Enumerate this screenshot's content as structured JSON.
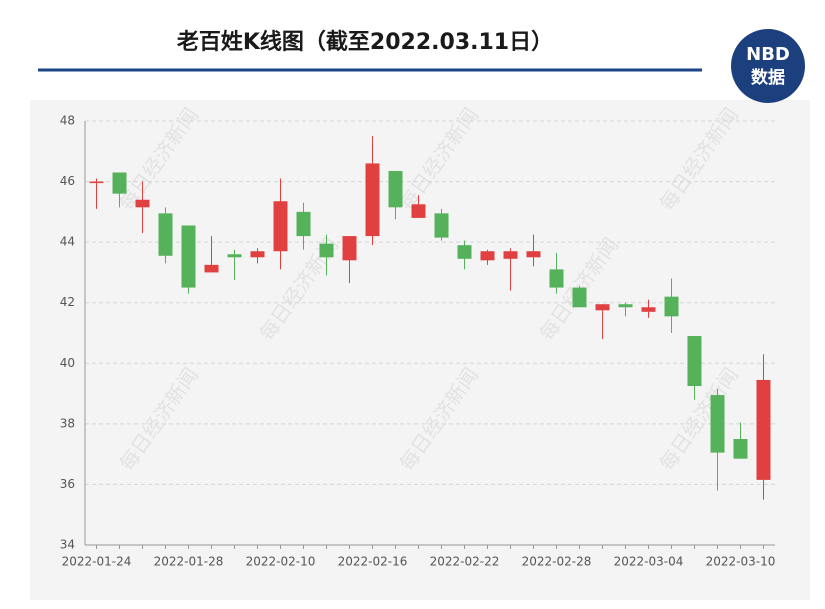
{
  "chart_data": {
    "type": "candlestick",
    "title": "老百姓K线图（截至2022.03.11日）",
    "logo": [
      "NBD",
      "数据"
    ],
    "watermark": "每日经济新闻",
    "categories": [
      "2022-01-24",
      null,
      null,
      null,
      "2022-01-28",
      null,
      null,
      null,
      "2022-02-10",
      null,
      null,
      null,
      "2022-02-16",
      null,
      null,
      null,
      "2022-02-22",
      null,
      null,
      null,
      "2022-02-28",
      null,
      null,
      null,
      "2022-03-04",
      null,
      null,
      null,
      "2022-03-10",
      null
    ],
    "open": [
      45.95,
      46.3,
      45.15,
      44.95,
      44.55,
      43.0,
      43.6,
      43.5,
      43.7,
      45.0,
      43.95,
      43.4,
      44.2,
      46.35,
      44.8,
      44.95,
      43.9,
      43.4,
      43.45,
      43.5,
      43.1,
      42.5,
      41.75,
      41.95,
      41.7,
      42.2,
      40.9,
      38.95,
      37.5,
      36.15
    ],
    "high": [
      46.1,
      46.3,
      46.0,
      45.15,
      44.55,
      44.2,
      43.75,
      43.8,
      46.1,
      45.3,
      44.25,
      44.2,
      47.5,
      46.35,
      45.55,
      45.1,
      44.05,
      43.75,
      43.8,
      44.25,
      43.65,
      42.55,
      41.95,
      42.0,
      42.1,
      42.8,
      40.9,
      39.15,
      38.05,
      40.3
    ],
    "low": [
      45.1,
      45.15,
      44.3,
      43.3,
      42.3,
      43.0,
      42.75,
      43.3,
      43.1,
      43.75,
      42.9,
      42.65,
      43.9,
      44.75,
      44.8,
      44.05,
      43.1,
      43.25,
      42.4,
      43.2,
      42.3,
      41.85,
      40.8,
      41.55,
      41.5,
      41.0,
      38.8,
      35.8,
      36.85,
      35.5
    ],
    "close": [
      46.0,
      45.6,
      45.4,
      43.55,
      42.5,
      43.25,
      43.5,
      43.7,
      45.35,
      44.2,
      43.5,
      44.2,
      46.6,
      45.15,
      45.25,
      44.15,
      43.45,
      43.7,
      43.7,
      43.7,
      42.5,
      41.85,
      41.95,
      41.85,
      41.85,
      41.55,
      39.25,
      37.05,
      36.85,
      39.45
    ],
    "up_color": "#e04040",
    "down_color": "#55b25a",
    "ylim": [
      34,
      48
    ],
    "yticks": [
      34,
      36,
      38,
      40,
      42,
      44,
      46,
      48
    ],
    "grid": true
  }
}
